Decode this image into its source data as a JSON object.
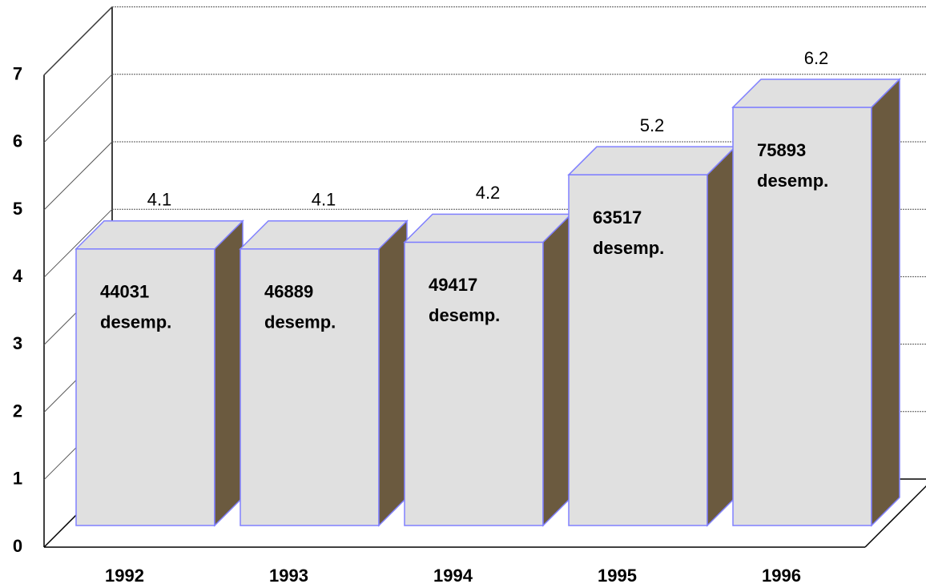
{
  "chart_data": {
    "type": "bar3d",
    "categories": [
      "1992",
      "1993",
      "1994",
      "1995",
      "1996"
    ],
    "values": [
      4.1,
      4.1,
      4.2,
      5.2,
      6.2
    ],
    "annotations": [
      [
        "44031",
        "desemp."
      ],
      [
        "46889",
        "desemp."
      ],
      [
        "49417",
        "desemp."
      ],
      [
        "63517",
        "desemp."
      ],
      [
        "75893",
        "desemp."
      ]
    ],
    "ylim": [
      0,
      7
    ],
    "yticks": [
      0,
      1,
      2,
      3,
      4,
      5,
      6,
      7
    ],
    "grid": true,
    "color": "#e0e0e0",
    "side_color": "#6b5a3f",
    "edge_color": "#8080ff"
  }
}
